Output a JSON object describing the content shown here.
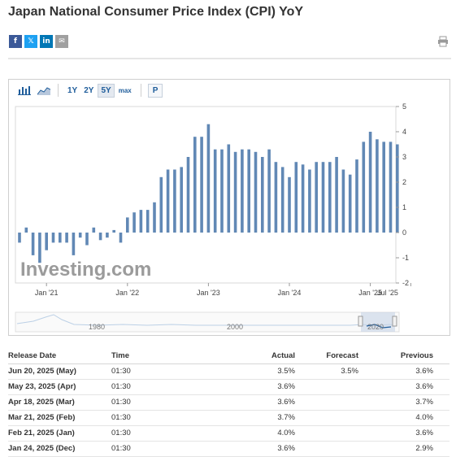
{
  "page": {
    "title": "Japan National Consumer Price Index (CPI) YoY"
  },
  "share": {
    "facebook_glyph": "f",
    "twitter_glyph": "𝕏",
    "linkedin_glyph": "in",
    "email_glyph": "✉",
    "icons": [
      "facebook-icon",
      "twitter-icon",
      "linkedin-icon",
      "email-icon",
      "print-icon"
    ]
  },
  "toolbar": {
    "ranges": [
      "1Y",
      "2Y",
      "5Y",
      "max"
    ],
    "active_range": "5Y",
    "p_label": "P"
  },
  "chart_data": {
    "type": "bar",
    "bar_color": "#6188b5",
    "watermark": "Investing.com",
    "y_ticks": [
      "5",
      "4",
      "3",
      "2",
      "1",
      "0",
      "-1",
      "-2"
    ],
    "ylim": [
      -2,
      5
    ],
    "x_tick_labels": [
      "Jan '21",
      "Jan '22",
      "Jan '23",
      "Jan '24",
      "Jan '25",
      "Jul '25"
    ],
    "x_tick_dates": [
      "2021-01",
      "2022-01",
      "2023-01",
      "2024-01",
      "2025-01",
      "2025-07"
    ],
    "start_month": "2020-09",
    "values": [
      -0.4,
      0.2,
      -0.9,
      -1.2,
      -0.7,
      -0.4,
      -0.4,
      -0.4,
      -0.9,
      -0.2,
      -0.5,
      0.2,
      -0.3,
      -0.2,
      0.1,
      -0.4,
      0.6,
      0.8,
      0.9,
      0.9,
      1.2,
      2.2,
      2.5,
      2.5,
      2.6,
      3.0,
      3.8,
      3.8,
      4.3,
      3.3,
      3.3,
      3.5,
      3.2,
      3.3,
      3.3,
      3.2,
      3.0,
      3.3,
      2.8,
      2.6,
      2.2,
      2.8,
      2.7,
      2.5,
      2.8,
      2.8,
      2.8,
      3.0,
      2.5,
      2.3,
      2.9,
      3.6,
      4.0,
      3.7,
      3.6,
      3.6,
      3.5
    ],
    "navigator_labels": [
      "1980",
      "2000",
      "2020"
    ],
    "grid": false,
    "legend": "none"
  },
  "table": {
    "headers": {
      "release_date": "Release Date",
      "time": "Time",
      "actual": "Actual",
      "forecast": "Forecast",
      "previous": "Previous"
    },
    "rows": [
      {
        "date": "Jun 20, 2025 (May)",
        "time": "01:30",
        "actual": "3.5%",
        "forecast": "3.5%",
        "previous": "3.6%"
      },
      {
        "date": "May 23, 2025 (Apr)",
        "time": "01:30",
        "actual": "3.6%",
        "forecast": "",
        "previous": "3.6%"
      },
      {
        "date": "Apr 18, 2025 (Mar)",
        "time": "01:30",
        "actual": "3.6%",
        "forecast": "",
        "previous": "3.7%"
      },
      {
        "date": "Mar 21, 2025 (Feb)",
        "time": "01:30",
        "actual": "3.7%",
        "forecast": "",
        "previous": "4.0%"
      },
      {
        "date": "Feb 21, 2025 (Jan)",
        "time": "01:30",
        "actual": "4.0%",
        "forecast": "",
        "previous": "3.6%"
      },
      {
        "date": "Jan 24, 2025 (Dec)",
        "time": "01:30",
        "actual": "3.6%",
        "forecast": "",
        "previous": "2.9%"
      }
    ]
  }
}
